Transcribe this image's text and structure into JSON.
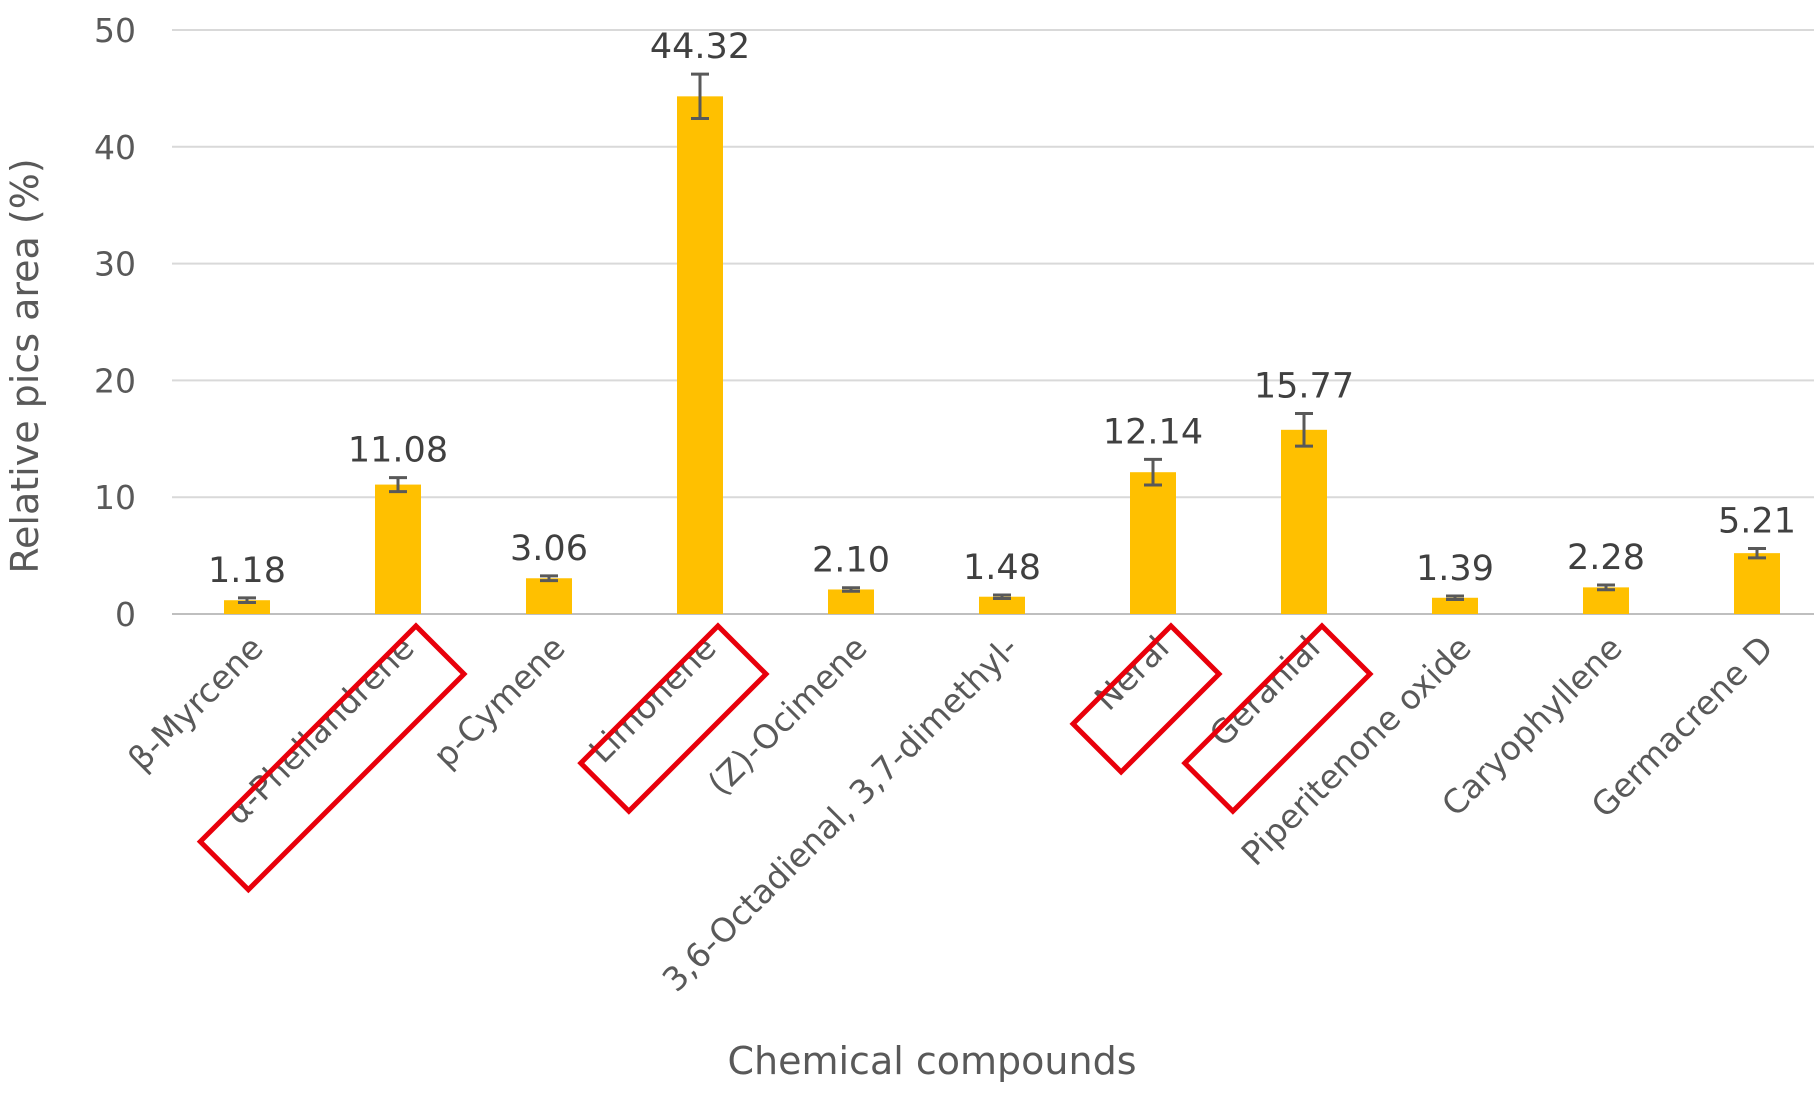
{
  "chart_data": {
    "type": "bar",
    "title": "",
    "xlabel": "Chemical compounds",
    "ylabel": "Relative pics area (%)",
    "ylim": [
      0,
      50
    ],
    "yticks": [
      0,
      10,
      20,
      30,
      40,
      50
    ],
    "grid": true,
    "legend": "none",
    "bar_color": "#ffc000",
    "error_bar_color": "#595959",
    "highlight_color": "#e8000b",
    "categories": [
      "β-Myrcene",
      "α-Phellandrene",
      "p-Cymene",
      "Limonene",
      "(Z)-Ocimene",
      "3,6-Octadienal, 3,7-dimethyl-",
      "Neral",
      "Geranial",
      "Piperitenone oxide",
      "Caryophyllene",
      "Germacrene D"
    ],
    "values": [
      1.18,
      11.08,
      3.06,
      44.32,
      2.1,
      1.48,
      12.14,
      15.77,
      1.39,
      2.28,
      5.21
    ],
    "value_labels": [
      "1.18",
      "11.08",
      "3.06",
      "44.32",
      "2.10",
      "1.48",
      "12.14",
      "15.77",
      "1.39",
      "2.28",
      "5.21"
    ],
    "errors": [
      0.2,
      0.6,
      0.2,
      1.9,
      0.15,
      0.15,
      1.1,
      1.4,
      0.15,
      0.2,
      0.4
    ],
    "highlighted": [
      "α-Phellandrene",
      "Limonene",
      "Neral",
      "Geranial"
    ]
  }
}
